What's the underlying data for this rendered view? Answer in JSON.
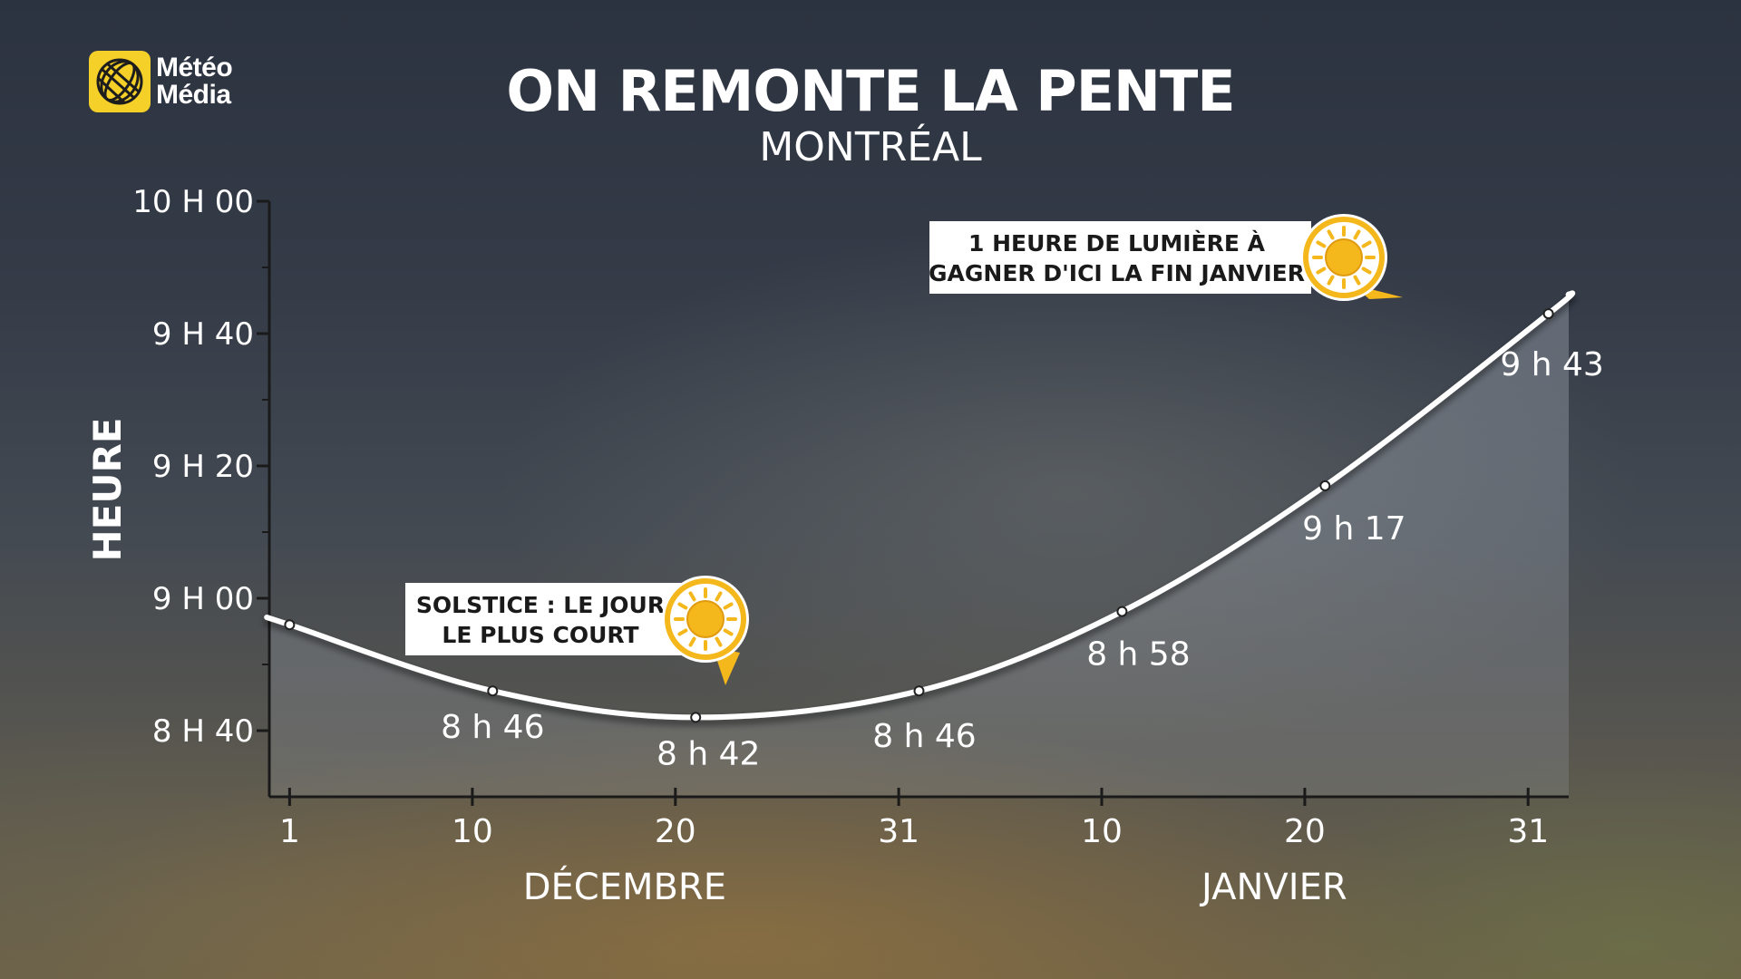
{
  "brand": {
    "name_line1": "Météo",
    "name_line2": "Média",
    "color": "#f5d028"
  },
  "chart_data": {
    "type": "line",
    "title": "ON REMONTE LA PENTE",
    "subtitle": "MONTRÉAL",
    "ylabel": "HEURE",
    "y_unit": "minutes of daylight",
    "ylim": [
      510,
      600
    ],
    "yticks": [
      {
        "value": 520,
        "label": "8 H 40"
      },
      {
        "value": 540,
        "label": "9 H 00"
      },
      {
        "value": 560,
        "label": "9 H 20"
      },
      {
        "value": 580,
        "label": "9 H 40"
      },
      {
        "value": 600,
        "label": "10 H 00"
      }
    ],
    "xticks": [
      {
        "label": "1",
        "month": "DÉCEMBRE",
        "day_index": 0
      },
      {
        "label": "10",
        "month": "DÉCEMBRE",
        "day_index": 9
      },
      {
        "label": "20",
        "month": "DÉCEMBRE",
        "day_index": 19
      },
      {
        "label": "31",
        "month": "DÉCEMBRE",
        "day_index": 30
      },
      {
        "label": "10",
        "month": "JANVIER",
        "day_index": 40
      },
      {
        "label": "20",
        "month": "JANVIER",
        "day_index": 50
      },
      {
        "label": "31",
        "month": "JANVIER",
        "day_index": 61
      }
    ],
    "month_labels": [
      {
        "label": "DÉCEMBRE",
        "day_index": 16.5
      },
      {
        "label": "JANVIER",
        "day_index": 48.5
      }
    ],
    "xlim": [
      -1,
      63
    ],
    "series": [
      {
        "points": [
          {
            "date": "1 déc.",
            "day_index": 0,
            "value": 536,
            "label": ""
          },
          {
            "date": "10 déc.",
            "day_index": 10,
            "value": 526,
            "label": "8 h 46"
          },
          {
            "date": "20 déc.",
            "day_index": 20,
            "value": 522,
            "label": "8 h 42"
          },
          {
            "date": "31 déc.",
            "day_index": 31,
            "value": 526,
            "label": "8 h 46"
          },
          {
            "date": "10 janv.",
            "day_index": 41,
            "value": 538,
            "label": "8 h 58"
          },
          {
            "date": "20 janv.",
            "day_index": 51,
            "value": 557,
            "label": "9 h 17"
          },
          {
            "date": "31 janv.",
            "day_index": 62,
            "value": 583,
            "label": "9 h 43"
          }
        ]
      }
    ],
    "annotations": [
      {
        "line1": "SOLSTICE : LE JOUR",
        "line2": "LE PLUS COURT",
        "icon": "sun-icon"
      },
      {
        "line1": "1 HEURE DE LUMIÈRE À",
        "line2": "GAGNER D'ICI LA FIN JANVIER",
        "icon": "sun-icon"
      }
    ],
    "colors": {
      "line": "#ffffff",
      "accent": "#f5b81c",
      "callout_bg": "#ffffff",
      "callout_text": "#1a1a1a"
    },
    "grid": false,
    "legend": "none"
  }
}
